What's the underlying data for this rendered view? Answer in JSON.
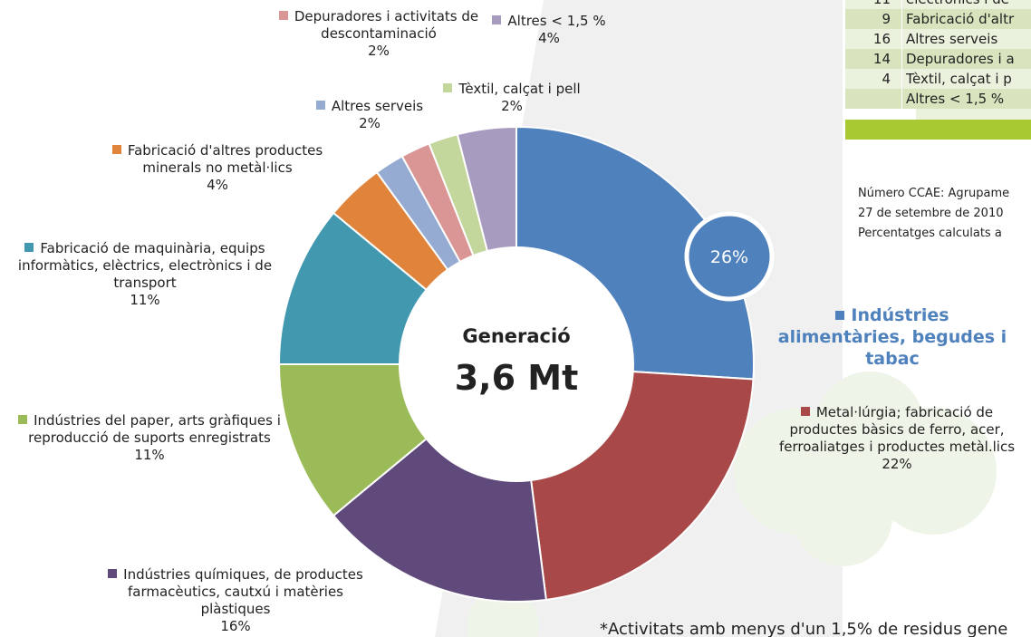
{
  "chart_data": {
    "type": "pie",
    "center_label": "Generació",
    "center_value": "3,6 Mt",
    "categories": [
      "Indústries alimentàries, begudes i tabac",
      "Metal·lúrgia; fabricació de productes bàsics de ferro, acer, ferroaliatges i productes metàl.lics",
      "Indústries químiques, de productes farmacèutics, cautxú i matèries plàstiques",
      "Indústries del paper, arts gràfiques i reproducció de suports enregistrats",
      "Fabricació de maquinària, equips informàtics, elèctrics, electrònics i de transport",
      "Fabricació d'altres productes minerals no metàl·lics",
      "Altres serveis",
      "Depuradores i activitats de descontaminació",
      "Tèxtil, calçat i pell",
      "Altres < 1,5 %"
    ],
    "values": [
      26,
      22,
      16,
      11,
      11,
      4,
      2,
      2,
      2,
      4
    ],
    "value_labels": [
      "26%",
      "22%",
      "16%",
      "11%",
      "11%",
      "4%",
      "2%",
      "2%",
      "2%",
      "4%"
    ],
    "colors": [
      "#4f81bd",
      "#a84848",
      "#604a7b",
      "#9bbb59",
      "#4198af",
      "#e0843c",
      "#95abd2",
      "#d99694",
      "#c3d69b",
      "#a89bc0"
    ]
  },
  "table": {
    "rows": [
      [
        "11",
        "electrònics i de"
      ],
      [
        "9",
        "Fabricació d'altr"
      ],
      [
        "16",
        "Altres serveis"
      ],
      [
        "14",
        "Depuradores i a"
      ],
      [
        "4",
        "Tèxtil, calçat i p"
      ],
      [
        "Altres < 1,5 %"
      ]
    ]
  },
  "notes": [
    "Número CCAE: Agrupame",
    "27 de setembre de 2010",
    "Percentatges calculats a"
  ],
  "footnote": "*Activitats amb menys d'un 1,5% de residus gene"
}
